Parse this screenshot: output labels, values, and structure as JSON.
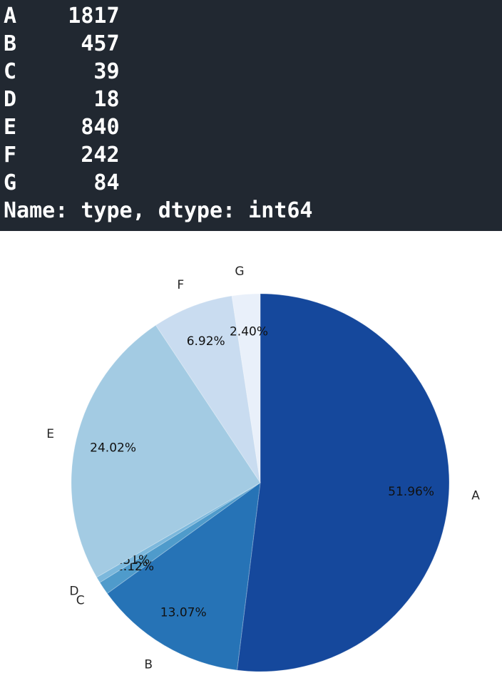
{
  "terminal": {
    "bg": "#212831",
    "fg": "#ffffff",
    "lines": [
      "A    1817",
      "B     457",
      "C      39",
      "D      18",
      "E     840",
      "F     242",
      "G      84",
      "Name: type, dtype: int64"
    ]
  },
  "chart_data": {
    "type": "pie",
    "title": "",
    "legend": "none",
    "categories": [
      "A",
      "B",
      "C",
      "D",
      "E",
      "F",
      "G"
    ],
    "values": [
      1817,
      457,
      39,
      18,
      840,
      242,
      84
    ],
    "percent_labels": [
      "51.96%",
      "13.07%",
      "1.12%",
      "0.51%",
      "24.02%",
      "6.92%",
      "2.40%"
    ],
    "colors": [
      "#15489c",
      "#2673b6",
      "#4f9bcb",
      "#7cb8dc",
      "#a3cbe3",
      "#c9dcf0",
      "#e9f0fa"
    ],
    "start_angle_deg": 90,
    "direction": "clockwise",
    "pct_distance": 0.8,
    "label_distance": 1.12
  }
}
